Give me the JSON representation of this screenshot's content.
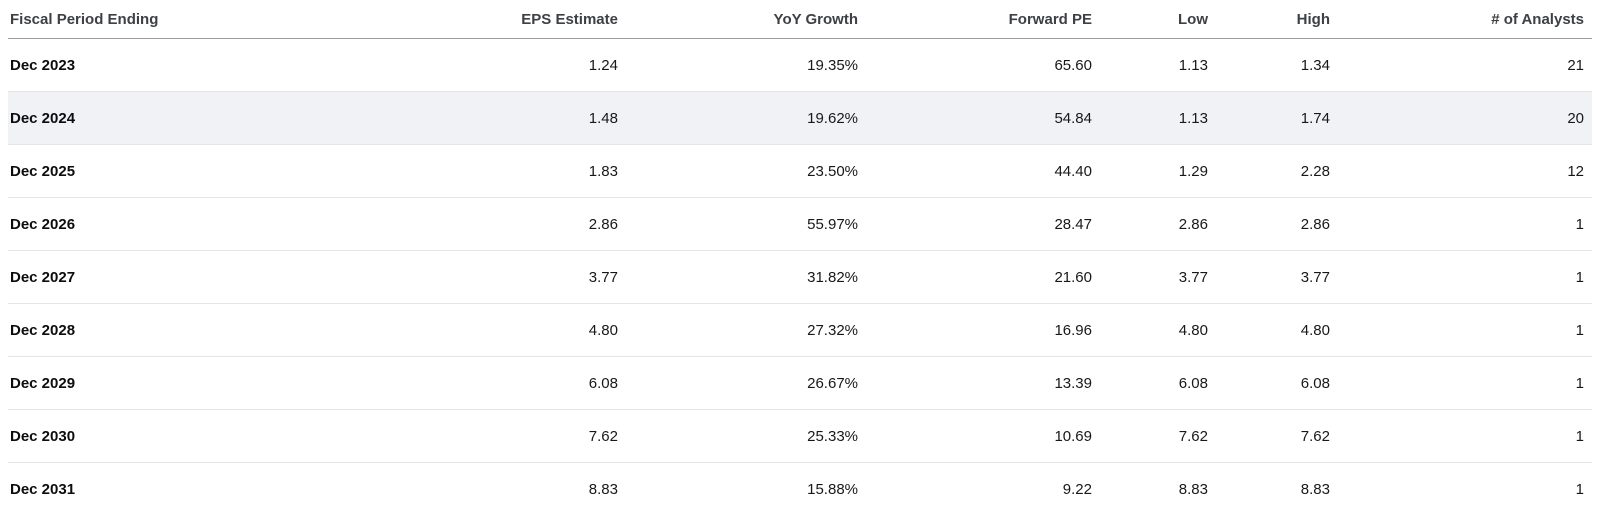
{
  "table": {
    "name": "analyst-eps-estimates",
    "columns": [
      {
        "label": "Fiscal Period Ending",
        "align": "left"
      },
      {
        "label": "EPS Estimate",
        "align": "right"
      },
      {
        "label": "YoY Growth",
        "align": "right"
      },
      {
        "label": "Forward PE",
        "align": "right"
      },
      {
        "label": "Low",
        "align": "right"
      },
      {
        "label": "High",
        "align": "right"
      },
      {
        "label": "# of Analysts",
        "align": "right"
      }
    ],
    "rows": [
      {
        "highlighted": false,
        "cells": [
          "Dec 2023",
          "1.24",
          "19.35%",
          "65.60",
          "1.13",
          "1.34",
          "21"
        ]
      },
      {
        "highlighted": true,
        "cells": [
          "Dec 2024",
          "1.48",
          "19.62%",
          "54.84",
          "1.13",
          "1.74",
          "20"
        ]
      },
      {
        "highlighted": false,
        "cells": [
          "Dec 2025",
          "1.83",
          "23.50%",
          "44.40",
          "1.29",
          "2.28",
          "12"
        ]
      },
      {
        "highlighted": false,
        "cells": [
          "Dec 2026",
          "2.86",
          "55.97%",
          "28.47",
          "2.86",
          "2.86",
          "1"
        ]
      },
      {
        "highlighted": false,
        "cells": [
          "Dec 2027",
          "3.77",
          "31.82%",
          "21.60",
          "3.77",
          "3.77",
          "1"
        ]
      },
      {
        "highlighted": false,
        "cells": [
          "Dec 2028",
          "4.80",
          "27.32%",
          "16.96",
          "4.80",
          "4.80",
          "1"
        ]
      },
      {
        "highlighted": false,
        "cells": [
          "Dec 2029",
          "6.08",
          "26.67%",
          "13.39",
          "6.08",
          "6.08",
          "1"
        ]
      },
      {
        "highlighted": false,
        "cells": [
          "Dec 2030",
          "7.62",
          "25.33%",
          "10.69",
          "7.62",
          "7.62",
          "1"
        ]
      },
      {
        "highlighted": false,
        "cells": [
          "Dec 2031",
          "8.83",
          "15.88%",
          "9.22",
          "8.83",
          "8.83",
          "1"
        ]
      }
    ]
  },
  "colors": {
    "background": "#ffffff",
    "highlight_row_bg": "#f1f2f6",
    "header_border": "#9aa0a8",
    "row_border": "#e4e5e7",
    "header_text": "#3d4045",
    "body_text": "#17181a",
    "period_text": "#0c0d0e"
  }
}
